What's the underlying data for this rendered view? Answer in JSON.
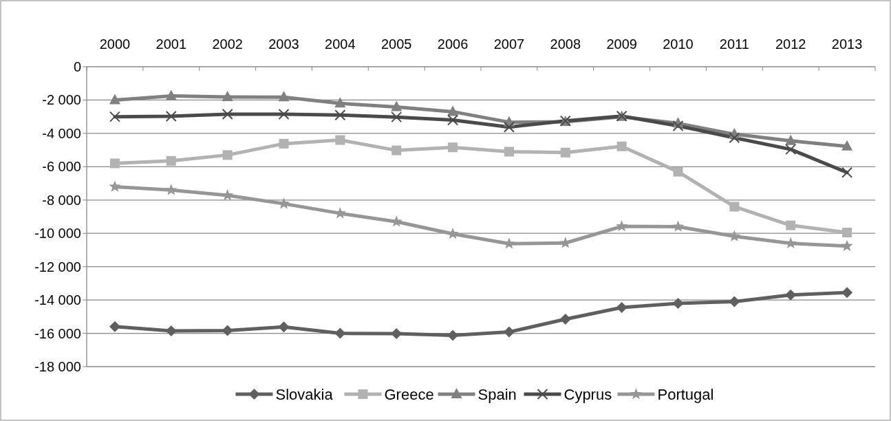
{
  "chart_data": {
    "type": "line",
    "categories": [
      "2000",
      "2001",
      "2002",
      "2003",
      "2004",
      "2005",
      "2006",
      "2007",
      "2008",
      "2009",
      "2010",
      "2011",
      "2012",
      "2013"
    ],
    "series": [
      {
        "name": "Slovakia",
        "color": "#5f5f5f",
        "marker": "diamond",
        "values": [
          -15600,
          -15850,
          -15830,
          -15620,
          -16000,
          -16020,
          -16120,
          -15920,
          -15150,
          -14450,
          -14200,
          -14100,
          -13700,
          -13550
        ]
      },
      {
        "name": "Greece",
        "color": "#b2b2b2",
        "marker": "square",
        "values": [
          -5800,
          -5650,
          -5300,
          -4620,
          -4400,
          -5020,
          -4840,
          -5100,
          -5150,
          -4780,
          -6300,
          -8400,
          -9520,
          -9950
        ]
      },
      {
        "name": "Spain",
        "color": "#808080",
        "marker": "triangle",
        "values": [
          -2000,
          -1750,
          -1820,
          -1830,
          -2200,
          -2420,
          -2700,
          -3330,
          -3300,
          -3000,
          -3400,
          -4050,
          -4450,
          -4780
        ]
      },
      {
        "name": "Cyprus",
        "color": "#4a4a4a",
        "marker": "cross",
        "values": [
          -3000,
          -2970,
          -2850,
          -2850,
          -2900,
          -3020,
          -3200,
          -3620,
          -3250,
          -2960,
          -3550,
          -4260,
          -4960,
          -6350
        ]
      },
      {
        "name": "Portugal",
        "color": "#969696",
        "marker": "star",
        "values": [
          -7200,
          -7400,
          -7720,
          -8220,
          -8800,
          -9300,
          -10030,
          -10620,
          -10580,
          -9580,
          -9600,
          -10180,
          -10600,
          -10760
        ]
      }
    ],
    "ylim": [
      -18000,
      0
    ],
    "yticks": [
      {
        "value": -18000,
        "label": "-18 000"
      },
      {
        "value": -16000,
        "label": "-16 000"
      },
      {
        "value": -14000,
        "label": "-14 000"
      },
      {
        "value": -12000,
        "label": "-12 000"
      },
      {
        "value": -10000,
        "label": "-10 000"
      },
      {
        "value": -8000,
        "label": "-8 000"
      },
      {
        "value": -6000,
        "label": "-6 000"
      },
      {
        "value": -4000,
        "label": "-4 000"
      },
      {
        "value": -2000,
        "label": "-2 000"
      },
      0
    ],
    "grid": "y",
    "legend": "bottom"
  }
}
